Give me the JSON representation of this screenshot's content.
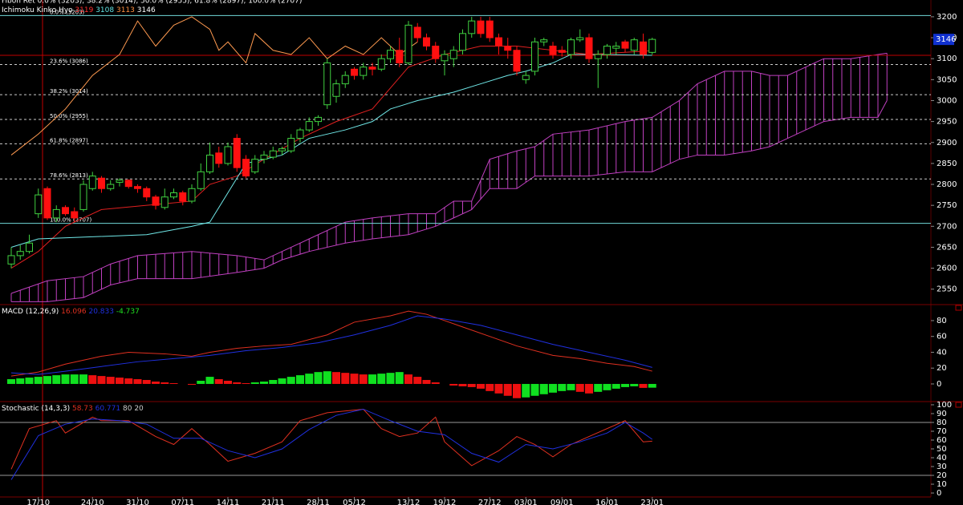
{
  "chart_data": [
    {
      "type": "candlestick",
      "header": {
        "fib_title": "Fibon Ret 0.0% (3203), 38.2% (3014), 50.0% (2955), 61.8% (2897), 100.0% (2707)",
        "ichimoku_title": "Ichimoku Kinko Hyo",
        "ichimoku_values": [
          3119,
          3108,
          3113,
          3146
        ],
        "ichimoku_colors": [
          "#ff3030",
          "#60e0e0",
          "#ff9040",
          "#ffffff"
        ]
      },
      "ylim": [
        2517,
        3240
      ],
      "yticks": [
        2550,
        2600,
        2650,
        2700,
        2750,
        2800,
        2850,
        2900,
        2950,
        3000,
        3050,
        3100,
        3150,
        3200
      ],
      "xticks": [
        {
          "value": 3,
          "label": "17/10"
        },
        {
          "value": 9,
          "label": "24/10"
        },
        {
          "value": 14,
          "label": "31/10"
        },
        {
          "value": 19,
          "label": "07/11"
        },
        {
          "value": 24,
          "label": "14/11"
        },
        {
          "value": 29,
          "label": "21/11"
        },
        {
          "value": 34,
          "label": "28/11"
        },
        {
          "value": 38,
          "label": "05/12"
        },
        {
          "value": 44,
          "label": "13/12"
        },
        {
          "value": 48,
          "label": "19/12"
        },
        {
          "value": 53,
          "label": "27/12"
        },
        {
          "value": 57,
          "label": "03/01"
        },
        {
          "value": 61,
          "label": "09/01"
        },
        {
          "value": 66,
          "label": "16/01"
        },
        {
          "value": 71,
          "label": "23/01"
        }
      ],
      "up_color": "#40d040",
      "down_color": "#ff1010",
      "candles": [
        [
          2610,
          2650,
          2600,
          2630
        ],
        [
          2630,
          2655,
          2620,
          2640
        ],
        [
          2640,
          2680,
          2635,
          2660
        ],
        [
          2730,
          2790,
          2720,
          2775
        ],
        [
          2790,
          2795,
          2715,
          2720
        ],
        [
          2720,
          2750,
          2710,
          2740
        ],
        [
          2745,
          2750,
          2725,
          2730
        ],
        [
          2735,
          2745,
          2710,
          2720
        ],
        [
          2740,
          2810,
          2735,
          2800
        ],
        [
          2790,
          2830,
          2785,
          2820
        ],
        [
          2815,
          2820,
          2780,
          2790
        ],
        [
          2790,
          2810,
          2785,
          2800
        ],
        [
          2805,
          2815,
          2795,
          2810
        ],
        [
          2810,
          2812,
          2790,
          2795
        ],
        [
          2795,
          2800,
          2780,
          2790
        ],
        [
          2790,
          2795,
          2760,
          2770
        ],
        [
          2770,
          2775,
          2740,
          2750
        ],
        [
          2745,
          2790,
          2740,
          2770
        ],
        [
          2770,
          2790,
          2765,
          2780
        ],
        [
          2780,
          2785,
          2750,
          2760
        ],
        [
          2760,
          2800,
          2755,
          2790
        ],
        [
          2790,
          2850,
          2785,
          2830
        ],
        [
          2830,
          2900,
          2825,
          2870
        ],
        [
          2875,
          2890,
          2840,
          2850
        ],
        [
          2850,
          2900,
          2845,
          2890
        ],
        [
          2910,
          2920,
          2830,
          2840
        ],
        [
          2860,
          2870,
          2815,
          2820
        ],
        [
          2830,
          2870,
          2825,
          2860
        ],
        [
          2860,
          2880,
          2850,
          2870
        ],
        [
          2865,
          2890,
          2860,
          2880
        ],
        [
          2880,
          2890,
          2870,
          2885
        ],
        [
          2880,
          2920,
          2875,
          2910
        ],
        [
          2910,
          2935,
          2900,
          2930
        ],
        [
          2930,
          2960,
          2925,
          2950
        ],
        [
          2950,
          2965,
          2940,
          2960
        ],
        [
          2990,
          3100,
          2980,
          3090
        ],
        [
          3010,
          3050,
          2995,
          3040
        ],
        [
          3040,
          3070,
          3030,
          3060
        ],
        [
          3075,
          3080,
          3050,
          3060
        ],
        [
          3060,
          3090,
          3050,
          3080
        ],
        [
          3080,
          3090,
          3060,
          3075
        ],
        [
          3075,
          3110,
          3070,
          3100
        ],
        [
          3100,
          3130,
          3090,
          3120
        ],
        [
          3120,
          3150,
          3080,
          3090
        ],
        [
          3090,
          3190,
          3085,
          3180
        ],
        [
          3175,
          3185,
          3140,
          3150
        ],
        [
          3150,
          3160,
          3120,
          3130
        ],
        [
          3130,
          3140,
          3090,
          3100
        ],
        [
          3095,
          3120,
          3060,
          3110
        ],
        [
          3100,
          3130,
          3080,
          3120
        ],
        [
          3120,
          3170,
          3110,
          3160
        ],
        [
          3160,
          3200,
          3150,
          3190
        ],
        [
          3190,
          3200,
          3150,
          3160
        ],
        [
          3190,
          3200,
          3140,
          3150
        ],
        [
          3150,
          3160,
          3110,
          3130
        ],
        [
          3130,
          3150,
          3100,
          3120
        ],
        [
          3120,
          3130,
          3060,
          3070
        ],
        [
          3050,
          3070,
          3040,
          3060
        ],
        [
          3070,
          3150,
          3060,
          3140
        ],
        [
          3140,
          3150,
          3130,
          3145
        ],
        [
          3130,
          3140,
          3100,
          3110
        ],
        [
          3120,
          3130,
          3105,
          3115
        ],
        [
          3110,
          3150,
          3100,
          3145
        ],
        [
          3145,
          3170,
          3140,
          3150
        ],
        [
          3150,
          3160,
          3090,
          3100
        ],
        [
          3100,
          3120,
          3030,
          3110
        ],
        [
          3110,
          3135,
          3100,
          3130
        ],
        [
          3125,
          3140,
          3110,
          3130
        ],
        [
          3140,
          3145,
          3115,
          3125
        ],
        [
          3120,
          3150,
          3110,
          3145
        ],
        [
          3140,
          3160,
          3100,
          3110
        ],
        [
          3115,
          3150,
          3110,
          3146
        ]
      ],
      "lines": [
        {
          "name": "tenkan",
          "color": "#e02020",
          "x": [
            0,
            3,
            6,
            10,
            15,
            20,
            22,
            25,
            28,
            32,
            36,
            40,
            42,
            44,
            48,
            52,
            56,
            60,
            64,
            71
          ],
          "values": [
            2600,
            2640,
            2700,
            2740,
            2750,
            2760,
            2800,
            2820,
            2860,
            2910,
            2950,
            2980,
            3030,
            3080,
            3110,
            3130,
            3130,
            3120,
            3110,
            3119
          ]
        },
        {
          "name": "kijun",
          "color": "#70e8e8",
          "x": [
            0,
            3,
            15,
            20,
            22,
            24,
            26,
            30,
            33,
            37,
            40,
            42,
            45,
            49,
            52,
            55,
            57,
            60,
            62,
            65,
            71
          ],
          "values": [
            2650,
            2670,
            2680,
            2700,
            2710,
            2780,
            2850,
            2870,
            2910,
            2930,
            2950,
            2980,
            3000,
            3020,
            3040,
            3060,
            3070,
            3090,
            3110,
            3110,
            3108
          ]
        },
        {
          "name": "chikou",
          "color": "#ff9a50",
          "x": [
            0,
            3,
            6,
            9,
            12,
            14,
            16,
            18,
            20,
            22,
            23,
            24,
            26,
            27,
            29,
            31,
            33,
            35,
            37,
            39,
            41,
            43,
            45
          ],
          "values": [
            2870,
            2920,
            2980,
            3060,
            3110,
            3190,
            3130,
            3180,
            3200,
            3170,
            3120,
            3140,
            3090,
            3160,
            3120,
            3110,
            3150,
            3100,
            3130,
            3110,
            3150,
            3110,
            3140
          ]
        }
      ],
      "cloud": {
        "color": "#c040c0",
        "x": [
          0,
          4,
          8,
          11,
          14,
          20,
          25,
          28,
          30,
          33,
          37,
          40,
          44,
          47,
          49,
          51,
          53,
          56,
          58,
          60,
          64,
          68,
          71,
          74,
          76,
          79,
          82,
          84,
          86,
          88,
          90,
          93,
          96,
          97
        ],
        "span_a": [
          2540,
          2570,
          2580,
          2610,
          2630,
          2640,
          2630,
          2620,
          2640,
          2670,
          2710,
          2720,
          2730,
          2730,
          2760,
          2760,
          2860,
          2880,
          2890,
          2920,
          2930,
          2950,
          2960,
          3000,
          3040,
          3070,
          3070,
          3060,
          3060,
          3080,
          3100,
          3100,
          3110,
          3113
        ],
        "span_b": [
          2520,
          2520,
          2530,
          2560,
          2575,
          2575,
          2590,
          2600,
          2620,
          2640,
          2660,
          2670,
          2680,
          2700,
          2720,
          2740,
          2790,
          2790,
          2820,
          2820,
          2820,
          2830,
          2830,
          2860,
          2870,
          2870,
          2880,
          2890,
          2910,
          2930,
          2950,
          2960,
          2960,
          3000
        ]
      },
      "fib_levels": [
        {
          "value": 3203,
          "label": "0.0% (3203)"
        },
        {
          "value": 3086,
          "label": "23.6% (3086)"
        },
        {
          "value": 3014,
          "label": "38.2% (3014)"
        },
        {
          "value": 2955,
          "label": "50.0% (2955)"
        },
        {
          "value": 2897,
          "label": "61.8% (2897)"
        },
        {
          "value": 2813,
          "label": "78.6% (2813)"
        },
        {
          "value": 2707,
          "label": "100.0% (2707)"
        }
      ],
      "horizontal_line": {
        "value": 3108,
        "color": "#c00000"
      }
    },
    {
      "type": "macd",
      "title": "MACD (12,26,9)",
      "ylim": [
        -21.3,
        99.2
      ],
      "yticks": [
        0,
        20,
        40,
        60,
        80
      ],
      "histogram": [
        6,
        7,
        8,
        9,
        10,
        11,
        12,
        12,
        12,
        11,
        10,
        9,
        8,
        7,
        6,
        5,
        3,
        2,
        1,
        0,
        -1,
        4,
        9,
        6,
        4,
        2,
        1,
        2,
        3,
        5,
        7,
        9,
        11,
        13,
        15,
        16,
        15,
        14,
        13,
        12,
        12,
        13,
        14,
        15,
        12,
        9,
        5,
        2,
        0,
        -2,
        -3,
        -4,
        -6,
        -9,
        -12,
        -15,
        -18,
        -17,
        -15,
        -13,
        -11,
        -9,
        -8,
        -10,
        -12,
        -10,
        -8,
        -6,
        -4,
        -3,
        -5,
        -4.737
      ],
      "up_color": "#10e020",
      "down_color": "#ee1010",
      "lines": [
        {
          "name": "macd",
          "color": "#e03020",
          "x": [
            0,
            3,
            6,
            10,
            13,
            17,
            20,
            22,
            25,
            28,
            31,
            35,
            38,
            42,
            44,
            46,
            48,
            50,
            53,
            56,
            60,
            63,
            66,
            69,
            71
          ],
          "values": [
            10,
            15,
            25,
            35,
            40,
            38,
            35,
            40,
            45,
            48,
            50,
            62,
            78,
            86,
            92,
            88,
            80,
            72,
            60,
            48,
            36,
            32,
            26,
            22,
            16.096
          ]
        },
        {
          "name": "signal",
          "color": "#2030e0",
          "x": [
            0,
            3,
            6,
            10,
            14,
            18,
            22,
            26,
            30,
            34,
            38,
            42,
            45,
            48,
            52,
            56,
            60,
            64,
            68,
            71
          ],
          "values": [
            14,
            12,
            16,
            22,
            28,
            32,
            36,
            42,
            46,
            52,
            62,
            74,
            86,
            82,
            74,
            62,
            50,
            40,
            30,
            20.833
          ]
        }
      ],
      "hist_label_color": "#20e020"
    },
    {
      "type": "stochastic",
      "title": "Stochastic (14,3,3)",
      "ylim": [
        -4.5,
        102.7
      ],
      "yticks": [
        0,
        10,
        20,
        30,
        40,
        50,
        60,
        70,
        80,
        90,
        100
      ],
      "levels": [
        80,
        20
      ],
      "lines": [
        {
          "name": "%K",
          "color": "#e03020",
          "x": [
            0,
            2,
            5,
            6,
            9,
            10,
            13,
            16,
            18,
            20,
            22,
            24,
            27,
            30,
            32,
            35,
            39,
            41,
            43,
            45,
            47,
            48,
            51,
            54,
            56,
            58,
            60,
            62,
            64,
            68,
            70,
            71
          ],
          "values": [
            27,
            73,
            82,
            68,
            86,
            82,
            82,
            64,
            55,
            73,
            55,
            36,
            45,
            58,
            82,
            91,
            95,
            73,
            64,
            68,
            86,
            58,
            31,
            48,
            64,
            55,
            41,
            55,
            64,
            82,
            58,
            58.73
          ]
        },
        {
          "name": "%D",
          "color": "#2030e0",
          "x": [
            0,
            3,
            6,
            9,
            12,
            15,
            18,
            21,
            24,
            27,
            30,
            33,
            36,
            39,
            42,
            45,
            48,
            51,
            54,
            57,
            60,
            63,
            66,
            68,
            70,
            71
          ],
          "values": [
            15,
            65,
            78,
            84,
            82,
            78,
            62,
            62,
            48,
            40,
            50,
            72,
            88,
            95,
            82,
            70,
            66,
            45,
            35,
            55,
            50,
            58,
            68,
            80,
            68,
            60.771
          ]
        }
      ]
    }
  ]
}
